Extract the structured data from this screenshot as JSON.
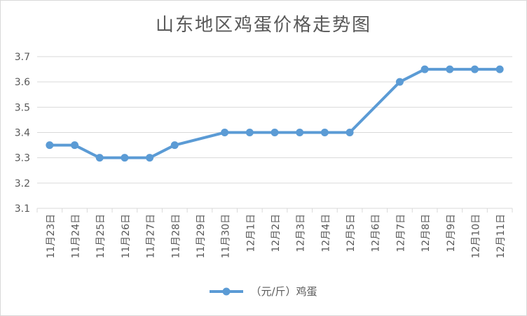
{
  "chart_data": {
    "type": "line",
    "title": "山东地区鸡蛋价格走势图",
    "categories": [
      "11月23日",
      "11月24日",
      "11月25日",
      "11月26日",
      "11月27日",
      "11月28日",
      "11月29日",
      "11月30日",
      "12月1日",
      "12月2日",
      "12月3日",
      "12月4日",
      "12月5日",
      "12月6日",
      "12月7日",
      "12月8日",
      "12月9日",
      "12月10日",
      "12月11日"
    ],
    "series": [
      {
        "name": "（元/斤）鸡蛋",
        "color": "#5b9bd5",
        "values": [
          3.35,
          3.35,
          3.3,
          3.3,
          3.3,
          3.35,
          null,
          3.4,
          3.4,
          3.4,
          3.4,
          3.4,
          3.4,
          null,
          3.6,
          3.65,
          3.65,
          3.65,
          3.65
        ]
      }
    ],
    "ylim": [
      3.1,
      3.7
    ],
    "yticks": [
      "3.1",
      "3.2",
      "3.3",
      "3.4",
      "3.5",
      "3.6",
      "3.7"
    ],
    "grid": true,
    "legend_position": "bottom"
  }
}
